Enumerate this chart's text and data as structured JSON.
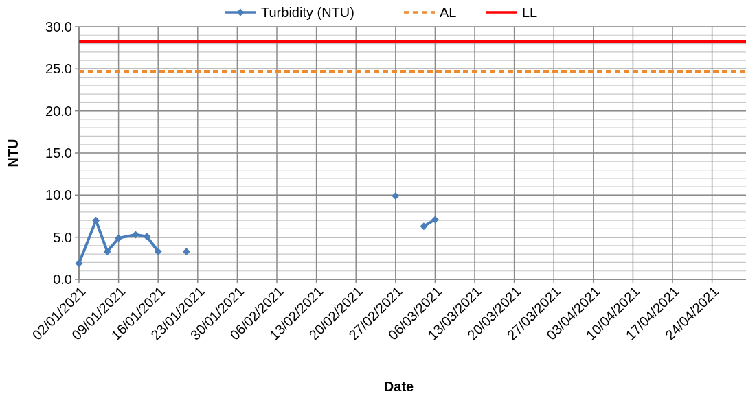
{
  "chart_data": {
    "type": "line",
    "xlabel": "Date",
    "ylabel": "NTU",
    "x": [
      "2021-01-02",
      "2021-01-05",
      "2021-01-07",
      "2021-01-09",
      "2021-01-12",
      "2021-01-14",
      "2021-01-16",
      "2021-01-18",
      "2021-01-21",
      "2021-02-01",
      "2021-02-27",
      "2021-03-02",
      "2021-03-04",
      "2021-03-06"
    ],
    "series": [
      {
        "name": "Turbidity (NTU)",
        "color": "#4a7ebb",
        "marker": "diamond",
        "line_style": "solid",
        "values": [
          1.9,
          7.0,
          3.3,
          4.9,
          5.3,
          5.1,
          3.3,
          null,
          3.3,
          null,
          9.9,
          null,
          6.3,
          7.1
        ]
      },
      {
        "name": "AL",
        "color": "#f08a30",
        "marker": "none",
        "line_style": "dashed",
        "x": [
          "2021-01-02",
          "2021-04-30"
        ],
        "values": [
          24.7,
          24.7
        ]
      },
      {
        "name": "LL",
        "color": "#ff0000",
        "marker": "none",
        "line_style": "solid",
        "x": [
          "2021-01-02",
          "2021-04-30"
        ],
        "values": [
          28.2,
          28.2
        ]
      }
    ],
    "xlim": [
      "2021-01-02",
      "2021-04-30"
    ],
    "xticks": [
      {
        "value": "2021-01-02",
        "label": "02/01/2021"
      },
      {
        "value": "2021-01-09",
        "label": "09/01/2021"
      },
      {
        "value": "2021-01-16",
        "label": "16/01/2021"
      },
      {
        "value": "2021-01-23",
        "label": "23/01/2021"
      },
      {
        "value": "2021-01-30",
        "label": "30/01/2021"
      },
      {
        "value": "2021-02-06",
        "label": "06/02/2021"
      },
      {
        "value": "2021-02-13",
        "label": "13/02/2021"
      },
      {
        "value": "2021-02-20",
        "label": "20/02/2021"
      },
      {
        "value": "2021-02-27",
        "label": "27/02/2021"
      },
      {
        "value": "2021-03-06",
        "label": "06/03/2021"
      },
      {
        "value": "2021-03-13",
        "label": "13/03/2021"
      },
      {
        "value": "2021-03-20",
        "label": "20/03/2021"
      },
      {
        "value": "2021-03-27",
        "label": "27/03/2021"
      },
      {
        "value": "2021-04-03",
        "label": "03/04/2021"
      },
      {
        "value": "2021-04-10",
        "label": "10/04/2021"
      },
      {
        "value": "2021-04-17",
        "label": "17/04/2021"
      },
      {
        "value": "2021-04-24",
        "label": "24/04/2021"
      }
    ],
    "ylim": [
      0,
      30
    ],
    "yticks": [
      {
        "value": 0,
        "label": "0.0"
      },
      {
        "value": 5,
        "label": "5.0"
      },
      {
        "value": 10,
        "label": "10.0"
      },
      {
        "value": 15,
        "label": "15.0"
      },
      {
        "value": 20,
        "label": "20.0"
      },
      {
        "value": 25,
        "label": "25.0"
      },
      {
        "value": 30,
        "label": "30.0"
      }
    ],
    "grid": true,
    "legend": "top"
  }
}
